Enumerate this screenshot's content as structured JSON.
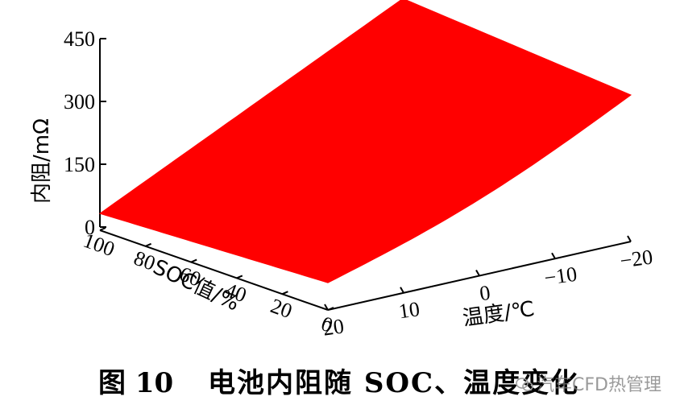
{
  "chart_data": {
    "type": "surface3d",
    "zlabel": "内阻/mΩ",
    "xlabel": "SOC值/%",
    "ylabel": "温度/℃",
    "z_ticks": [
      0,
      150,
      300,
      450
    ],
    "soc_ticks": [
      100,
      80,
      60,
      40,
      20,
      0
    ],
    "temp_ticks": [
      20,
      10,
      0,
      -10,
      -20
    ],
    "zlim": [
      0,
      450
    ],
    "surface_color": "#ff0000",
    "grid": false,
    "corner_values": [
      {
        "soc": 100,
        "temperature": 20,
        "resistance": 40
      },
      {
        "soc": 0,
        "temperature": 20,
        "resistance": 65
      },
      {
        "soc": 0,
        "temperature": -20,
        "resistance": 350
      },
      {
        "soc": 100,
        "temperature": -20,
        "resistance": 390
      }
    ]
  },
  "caption": {
    "figure_number": "图 10",
    "text": "电池内阻随 SOC、温度变化"
  },
  "watermark": "汽车CFD热管理"
}
